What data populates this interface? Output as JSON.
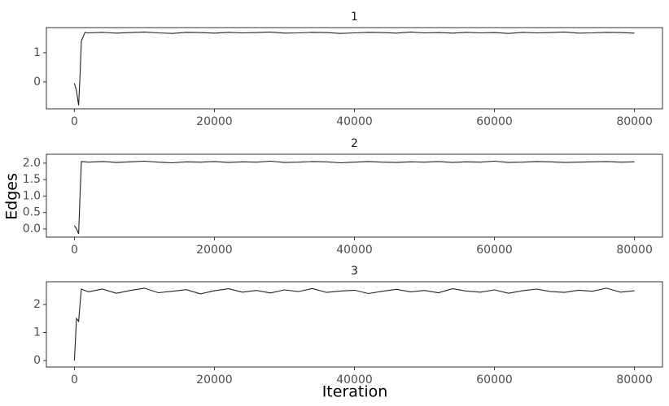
{
  "xlabel": "Iteration",
  "ylabel": "Edges",
  "chart_data": [
    {
      "type": "line",
      "title": "1",
      "color": "#222222",
      "xlim": [
        -4000,
        84000
      ],
      "xticks": [
        0,
        20000,
        40000,
        60000,
        80000
      ],
      "ylim": [
        -0.92,
        1.86
      ],
      "yticks": [
        0,
        1
      ],
      "x": [
        0,
        300,
        600,
        800,
        1000,
        1500,
        2000,
        4000,
        6000,
        8000,
        10000,
        12000,
        14000,
        16000,
        18000,
        20000,
        22000,
        24000,
        26000,
        28000,
        30000,
        32000,
        34000,
        36000,
        38000,
        40000,
        42000,
        44000,
        46000,
        48000,
        50000,
        52000,
        54000,
        56000,
        58000,
        60000,
        62000,
        64000,
        66000,
        68000,
        70000,
        72000,
        74000,
        76000,
        78000,
        80000
      ],
      "values": [
        -0.05,
        -0.3,
        -0.8,
        0.2,
        1.4,
        1.69,
        1.68,
        1.7,
        1.67,
        1.69,
        1.71,
        1.68,
        1.66,
        1.7,
        1.69,
        1.67,
        1.7,
        1.68,
        1.69,
        1.71,
        1.67,
        1.68,
        1.7,
        1.69,
        1.66,
        1.68,
        1.7,
        1.69,
        1.67,
        1.71,
        1.68,
        1.69,
        1.67,
        1.7,
        1.68,
        1.69,
        1.66,
        1.7,
        1.68,
        1.69,
        1.71,
        1.67,
        1.68,
        1.7,
        1.69,
        1.67
      ]
    },
    {
      "type": "line",
      "title": "2",
      "color": "#222222",
      "xlim": [
        -4000,
        84000
      ],
      "xticks": [
        0,
        20000,
        40000,
        60000,
        80000
      ],
      "ylim": [
        -0.25,
        2.27
      ],
      "yticks": [
        {
          "value": 0,
          "label": "0.0"
        },
        {
          "value": 0.5,
          "label": "0.5"
        },
        {
          "value": 1,
          "label": "1.0"
        },
        {
          "value": 1.5,
          "label": "1.5"
        },
        {
          "value": 2,
          "label": "2.0"
        }
      ],
      "x": [
        0,
        300,
        600,
        800,
        1000,
        1500,
        2000,
        4000,
        6000,
        8000,
        10000,
        12000,
        14000,
        16000,
        18000,
        20000,
        22000,
        24000,
        26000,
        28000,
        30000,
        32000,
        34000,
        36000,
        38000,
        40000,
        42000,
        44000,
        46000,
        48000,
        50000,
        52000,
        54000,
        56000,
        58000,
        60000,
        62000,
        64000,
        66000,
        68000,
        70000,
        72000,
        74000,
        76000,
        78000,
        80000
      ],
      "values": [
        0.1,
        0.0,
        -0.15,
        1.0,
        2.05,
        2.04,
        2.03,
        2.05,
        2.02,
        2.04,
        2.06,
        2.03,
        2.01,
        2.04,
        2.03,
        2.05,
        2.02,
        2.04,
        2.03,
        2.06,
        2.02,
        2.03,
        2.05,
        2.04,
        2.01,
        2.03,
        2.05,
        2.03,
        2.02,
        2.04,
        2.03,
        2.05,
        2.02,
        2.04,
        2.03,
        2.06,
        2.02,
        2.03,
        2.05,
        2.04,
        2.02,
        2.03,
        2.04,
        2.05,
        2.03,
        2.04
      ]
    },
    {
      "type": "line",
      "title": "3",
      "color": "#222222",
      "xlim": [
        -4000,
        84000
      ],
      "xticks": [
        0,
        20000,
        40000,
        60000,
        80000
      ],
      "ylim": [
        -0.23,
        2.81
      ],
      "yticks": [
        0,
        1,
        2
      ],
      "x": [
        0,
        300,
        600,
        800,
        1000,
        1500,
        2000,
        4000,
        6000,
        8000,
        10000,
        12000,
        14000,
        16000,
        18000,
        20000,
        22000,
        24000,
        26000,
        28000,
        30000,
        32000,
        34000,
        36000,
        38000,
        40000,
        42000,
        44000,
        46000,
        48000,
        50000,
        52000,
        54000,
        56000,
        58000,
        60000,
        62000,
        64000,
        66000,
        68000,
        70000,
        72000,
        74000,
        76000,
        78000,
        80000
      ],
      "values": [
        0.0,
        1.5,
        1.4,
        2.0,
        2.55,
        2.5,
        2.45,
        2.55,
        2.4,
        2.5,
        2.58,
        2.42,
        2.47,
        2.53,
        2.38,
        2.49,
        2.56,
        2.44,
        2.5,
        2.41,
        2.52,
        2.46,
        2.57,
        2.43,
        2.48,
        2.51,
        2.39,
        2.47,
        2.54,
        2.45,
        2.5,
        2.42,
        2.56,
        2.48,
        2.44,
        2.52,
        2.4,
        2.49,
        2.55,
        2.46,
        2.43,
        2.51,
        2.47,
        2.58,
        2.44,
        2.49
      ]
    }
  ]
}
